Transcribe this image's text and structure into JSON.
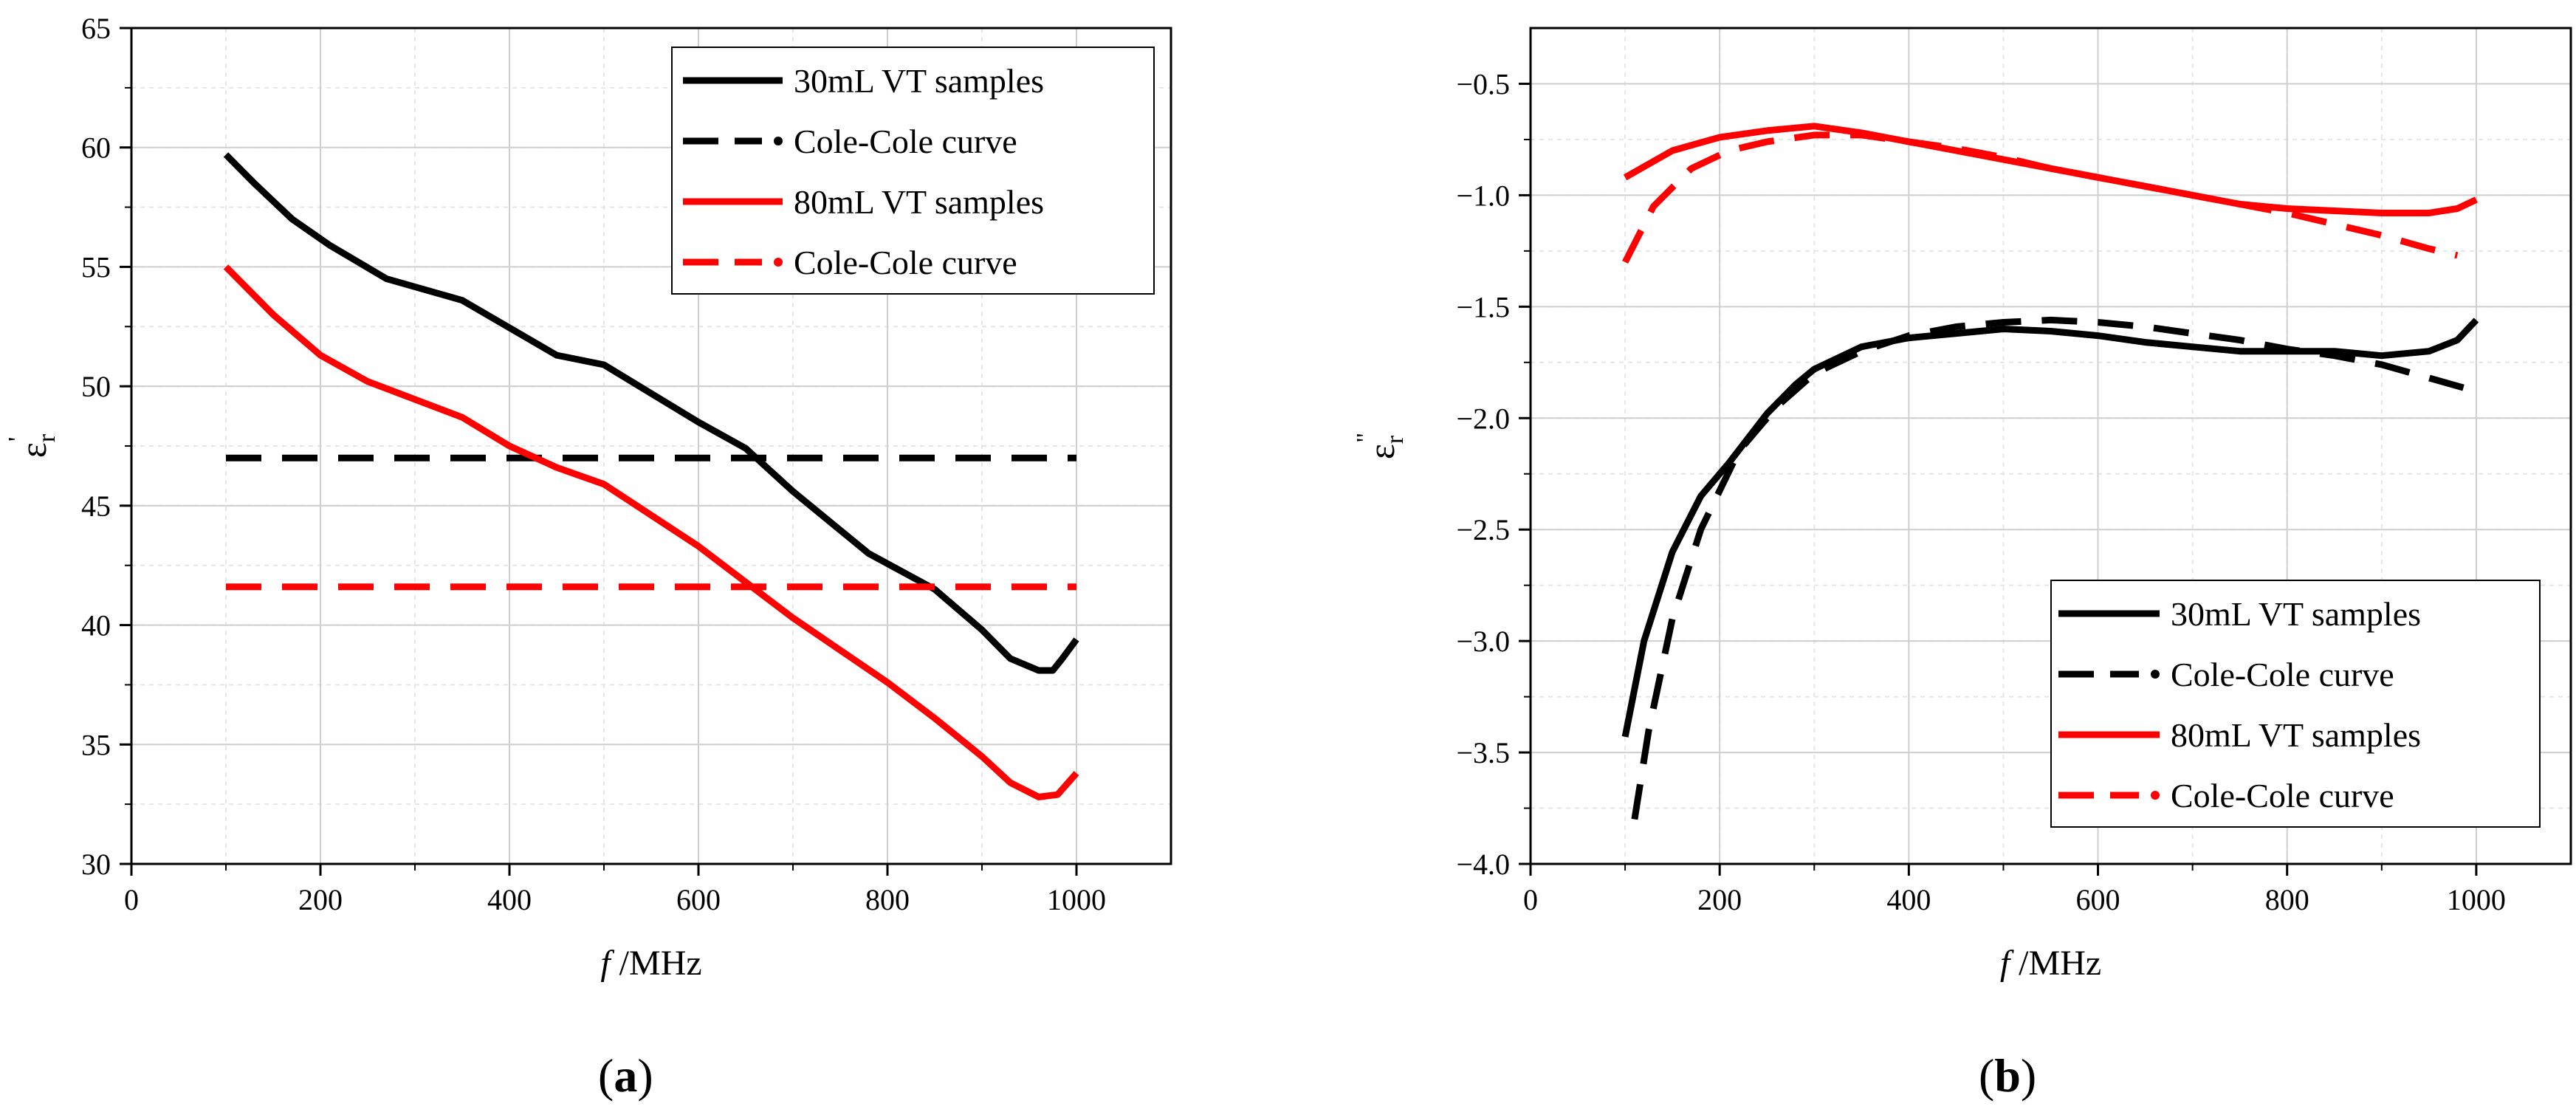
{
  "chart_data": [
    {
      "panel": "(a)",
      "panel_letter": "a",
      "type": "line",
      "title": "",
      "xlabel_italic": "f",
      "xlabel_rest": " /MHz",
      "ylabel": "ε",
      "ylabel_sub": "r",
      "ylabel_sup": "'",
      "xlim": [
        0,
        1100
      ],
      "ylim": [
        30,
        65
      ],
      "xticks": [
        0,
        200,
        400,
        600,
        800,
        1000
      ],
      "yticks": [
        30,
        35,
        40,
        45,
        50,
        55,
        60,
        65
      ],
      "x_minor_step": 100,
      "y_minor_step": 2.5,
      "grid": true,
      "legend_position": "top-right",
      "series": [
        {
          "name": "30mL VT samples",
          "color": "#000000",
          "dash": "solid",
          "x": [
            100,
            130,
            170,
            210,
            270,
            350,
            450,
            500,
            600,
            650,
            700,
            780,
            850,
            900,
            930,
            960,
            975,
            985,
            1000
          ],
          "values": [
            59.7,
            58.5,
            57.0,
            55.9,
            54.5,
            53.6,
            51.3,
            50.9,
            48.5,
            47.4,
            45.6,
            43.0,
            41.5,
            39.8,
            38.6,
            38.1,
            38.1,
            38.6,
            39.4
          ]
        },
        {
          "name": "Cole-Cole curve",
          "color": "#000000",
          "dash": "dashed",
          "x": [
            100,
            1000
          ],
          "values": [
            47.0,
            47.0
          ]
        },
        {
          "name": "80mL VT samples",
          "color": "#ff0000",
          "dash": "solid",
          "x": [
            100,
            150,
            200,
            250,
            350,
            400,
            450,
            500,
            600,
            650,
            700,
            800,
            850,
            900,
            930,
            960,
            980,
            1000
          ],
          "values": [
            55.0,
            53.0,
            51.3,
            50.2,
            48.7,
            47.5,
            46.6,
            45.9,
            43.3,
            41.8,
            40.3,
            37.6,
            36.1,
            34.5,
            33.4,
            32.8,
            32.9,
            33.8
          ]
        },
        {
          "name": "Cole-Cole curve",
          "color": "#ff0000",
          "dash": "dashed",
          "x": [
            100,
            1000
          ],
          "values": [
            41.6,
            41.6
          ]
        }
      ]
    },
    {
      "panel": "(b)",
      "panel_letter": "b",
      "type": "line",
      "title": "",
      "xlabel_italic": "f",
      "xlabel_rest": " /MHz",
      "ylabel": "ε",
      "ylabel_sub": "r",
      "ylabel_sup": "\"",
      "xlim": [
        0,
        1100
      ],
      "ylim": [
        -4.0,
        -0.25
      ],
      "xticks": [
        0,
        200,
        400,
        600,
        800,
        1000
      ],
      "yticks": [
        -4.0,
        -3.5,
        -3.0,
        -2.5,
        -2.0,
        -1.5,
        -1.0,
        -0.5
      ],
      "ytick_labels": [
        "−4.0",
        "−3.5",
        "−3.0",
        "−2.5",
        "−2.0",
        "−1.5",
        "−1.0",
        "−0.5"
      ],
      "x_minor_step": 100,
      "y_minor_step": 0.25,
      "grid": true,
      "legend_position": "bottom-right",
      "series": [
        {
          "name": "30mL VT samples",
          "color": "#000000",
          "dash": "solid",
          "x": [
            100,
            120,
            150,
            180,
            210,
            250,
            280,
            300,
            350,
            400,
            450,
            500,
            550,
            600,
            650,
            700,
            750,
            800,
            850,
            900,
            950,
            980,
            1000
          ],
          "values": [
            -3.43,
            -3.0,
            -2.6,
            -2.35,
            -2.2,
            -1.98,
            -1.85,
            -1.78,
            -1.68,
            -1.64,
            -1.62,
            -1.6,
            -1.61,
            -1.63,
            -1.66,
            -1.68,
            -1.7,
            -1.7,
            -1.7,
            -1.72,
            -1.7,
            -1.65,
            -1.56
          ]
        },
        {
          "name": "Cole-Cole curve",
          "color": "#000000",
          "dash": "dashed",
          "x": [
            110,
            125,
            150,
            180,
            220,
            260,
            300,
            350,
            400,
            450,
            500,
            550,
            600,
            650,
            700,
            750,
            800,
            850,
            900,
            950,
            1000
          ],
          "values": [
            -3.8,
            -3.4,
            -2.9,
            -2.5,
            -2.15,
            -1.95,
            -1.8,
            -1.7,
            -1.63,
            -1.59,
            -1.57,
            -1.56,
            -1.57,
            -1.59,
            -1.62,
            -1.65,
            -1.69,
            -1.72,
            -1.76,
            -1.82,
            -1.88
          ]
        },
        {
          "name": "80mL VT samples",
          "color": "#ff0000",
          "dash": "solid",
          "x": [
            100,
            150,
            200,
            250,
            300,
            350,
            400,
            450,
            500,
            550,
            600,
            650,
            700,
            750,
            800,
            850,
            900,
            950,
            980,
            1000
          ],
          "values": [
            -0.92,
            -0.8,
            -0.74,
            -0.71,
            -0.69,
            -0.72,
            -0.76,
            -0.8,
            -0.84,
            -0.88,
            -0.92,
            -0.96,
            -1.0,
            -1.04,
            -1.06,
            -1.07,
            -1.08,
            -1.08,
            -1.06,
            -1.02
          ]
        },
        {
          "name": "Cole-Cole curve",
          "color": "#ff0000",
          "dash": "dashed",
          "x": [
            100,
            130,
            170,
            210,
            250,
            300,
            350,
            400,
            450,
            500,
            550,
            600,
            650,
            700,
            750,
            800,
            850,
            900,
            950,
            980
          ],
          "values": [
            -1.3,
            -1.05,
            -0.88,
            -0.8,
            -0.76,
            -0.73,
            -0.73,
            -0.76,
            -0.79,
            -0.83,
            -0.88,
            -0.92,
            -0.96,
            -1.0,
            -1.04,
            -1.08,
            -1.13,
            -1.18,
            -1.24,
            -1.27
          ]
        }
      ]
    }
  ]
}
